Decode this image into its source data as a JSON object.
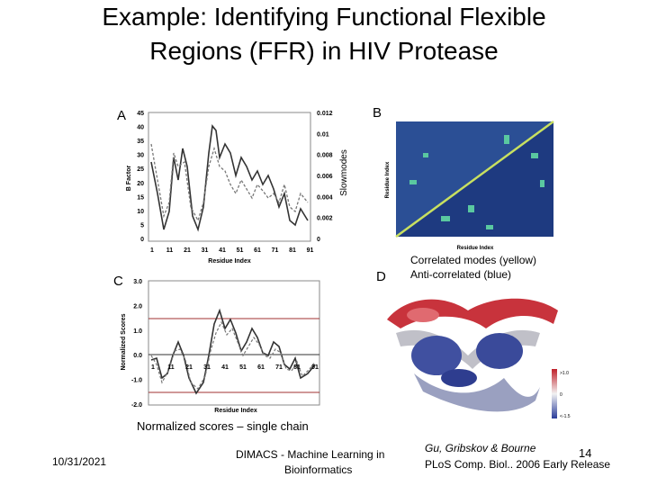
{
  "header": {
    "title_line1": "Example: Identifying Functional Flexible",
    "title_line2": "Regions (FFR) in HIV Protease"
  },
  "panels": {
    "a": {
      "label": "A",
      "y_ticks": [
        "45",
        "40",
        "35",
        "30",
        "25",
        "20",
        "15",
        "10",
        "5",
        "0"
      ],
      "y2_ticks": [
        "0.012",
        "0.01",
        "0.008",
        "0.006",
        "0.004",
        "0.002",
        "0"
      ],
      "x_ticks": [
        "1",
        "11",
        "21",
        "31",
        "41",
        "51",
        "61",
        "71",
        "81",
        "91"
      ],
      "y_label": "B Factor",
      "y2_label": "Slowmodes",
      "x_label": "Residue Index"
    },
    "b": {
      "label": "B",
      "y_label": "Residue Index",
      "x_label": "Residue Index"
    },
    "c": {
      "label": "C",
      "y_ticks": [
        "3.0",
        "2.0",
        "1.0",
        "0.0",
        "-1.0",
        "-2.0"
      ],
      "x_ticks": [
        "1",
        "11",
        "21",
        "31",
        "41",
        "51",
        "61",
        "71",
        "81",
        "91"
      ],
      "y_label": "Normalized Scores",
      "x_label": "Residue Index",
      "caption": "Normalized scores – single chain"
    },
    "d": {
      "label": "D",
      "legend_line1": "Correlated modes (yellow)",
      "legend_line2": "Anti-correlated (blue)",
      "colorbar": [
        ">1.0",
        "0",
        "<-1.5"
      ]
    }
  },
  "footer": {
    "date": "10/31/2021",
    "venue_line1": "DIMACS - Machine Learning in",
    "venue_line2": "Bioinformatics",
    "authors": "Gu, Gribskov & Bourne",
    "page": "14",
    "citation": "PLoS Comp. Biol.. 2006 Early Release"
  }
}
